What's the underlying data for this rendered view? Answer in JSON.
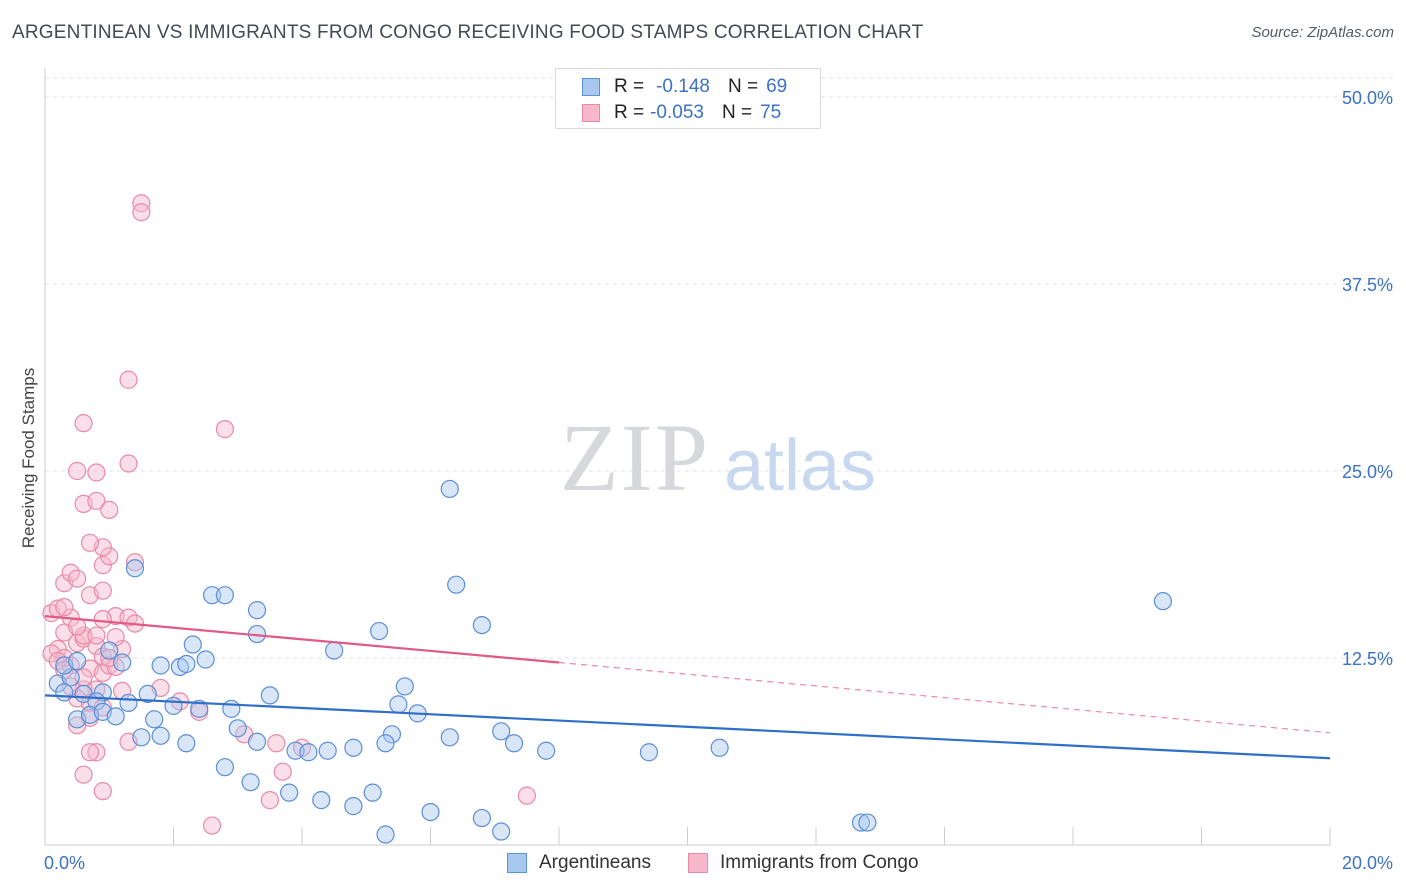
{
  "header": {
    "title": "ARGENTINEAN VS IMMIGRANTS FROM CONGO RECEIVING FOOD STAMPS CORRELATION CHART",
    "source": "Source: ZipAtlas.com"
  },
  "watermark": {
    "zip": "ZIP",
    "atlas": "atlas"
  },
  "legend": {
    "r_label": "R =",
    "n_label": "N =",
    "rows": [
      {
        "r": "-0.148",
        "n": "69"
      },
      {
        "r": "-0.053",
        "n": "75"
      }
    ]
  },
  "colors": {
    "blue_fill": "#a8c8f0",
    "blue_stroke": "#5b8fd6",
    "blue_line": "#2e6fc9",
    "pink_fill": "#f7b8cb",
    "pink_stroke": "#e88aa6",
    "pink_line": "#e05a86",
    "axis_label": "#3b72c4",
    "grid": "#dde0e5"
  },
  "chart_data": {
    "type": "scatter",
    "title": "ARGENTINEAN VS IMMIGRANTS FROM CONGO RECEIVING FOOD STAMPS CORRELATION CHART",
    "xlabel": "",
    "ylabel": "Receiving Food Stamps",
    "xlim": [
      0,
      20
    ],
    "ylim": [
      0,
      50
    ],
    "x_tick_labels": [
      "0.0%",
      "20.0%"
    ],
    "y_ticks": [
      12.5,
      25.0,
      37.5,
      50.0
    ],
    "y_tick_labels": [
      "12.5%",
      "25.0%",
      "37.5%",
      "50.0%"
    ],
    "legend_position": "top-center",
    "series": [
      {
        "name": "Argentineans",
        "r": -0.148,
        "n": 69,
        "trend": {
          "x": [
            0,
            20
          ],
          "y": [
            10.0,
            5.8
          ]
        },
        "points": [
          [
            0.2,
            10.8
          ],
          [
            0.4,
            11.2
          ],
          [
            0.3,
            12.0
          ],
          [
            0.5,
            12.3
          ],
          [
            0.3,
            10.2
          ],
          [
            0.6,
            10.1
          ],
          [
            0.9,
            10.2
          ],
          [
            0.8,
            9.6
          ],
          [
            0.5,
            8.4
          ],
          [
            0.7,
            8.7
          ],
          [
            0.9,
            8.9
          ],
          [
            1.0,
            13.0
          ],
          [
            1.2,
            12.2
          ],
          [
            1.1,
            8.6
          ],
          [
            1.3,
            9.5
          ],
          [
            1.4,
            18.5
          ],
          [
            1.6,
            10.1
          ],
          [
            1.7,
            8.4
          ],
          [
            1.5,
            7.2
          ],
          [
            1.8,
            7.3
          ],
          [
            1.8,
            12.0
          ],
          [
            2.0,
            9.3
          ],
          [
            2.1,
            11.9
          ],
          [
            2.2,
            12.1
          ],
          [
            2.3,
            13.4
          ],
          [
            2.4,
            9.1
          ],
          [
            2.2,
            6.8
          ],
          [
            2.5,
            12.4
          ],
          [
            2.6,
            16.7
          ],
          [
            2.8,
            16.7
          ],
          [
            3.3,
            15.7
          ],
          [
            3.3,
            14.1
          ],
          [
            2.9,
            9.1
          ],
          [
            3.5,
            10.0
          ],
          [
            3.0,
            7.8
          ],
          [
            2.8,
            5.2
          ],
          [
            3.3,
            6.9
          ],
          [
            3.2,
            4.2
          ],
          [
            3.9,
            6.3
          ],
          [
            4.1,
            6.2
          ],
          [
            4.4,
            6.3
          ],
          [
            4.8,
            6.5
          ],
          [
            4.5,
            13.0
          ],
          [
            5.2,
            14.3
          ],
          [
            5.6,
            10.6
          ],
          [
            5.5,
            9.4
          ],
          [
            5.8,
            8.8
          ],
          [
            5.4,
            7.4
          ],
          [
            5.3,
            6.8
          ],
          [
            6.3,
            23.8
          ],
          [
            6.4,
            17.4
          ],
          [
            6.8,
            14.7
          ],
          [
            7.1,
            7.6
          ],
          [
            6.3,
            7.2
          ],
          [
            7.3,
            6.8
          ],
          [
            7.8,
            6.3
          ],
          [
            9.4,
            6.2
          ],
          [
            10.5,
            6.5
          ],
          [
            3.8,
            3.5
          ],
          [
            4.3,
            3.0
          ],
          [
            4.8,
            2.6
          ],
          [
            5.1,
            3.5
          ],
          [
            6.0,
            2.2
          ],
          [
            6.8,
            1.8
          ],
          [
            5.3,
            0.7
          ],
          [
            7.1,
            0.9
          ],
          [
            12.7,
            1.5
          ],
          [
            12.8,
            1.5
          ],
          [
            17.4,
            16.3
          ]
        ]
      },
      {
        "name": "Immigrants from Congo",
        "r": -0.053,
        "n": 75,
        "trend": {
          "x": [
            0,
            8
          ],
          "y": [
            15.3,
            12.2
          ]
        },
        "trend_extension": {
          "x": [
            8,
            20
          ],
          "y": [
            12.2,
            7.5
          ]
        },
        "points": [
          [
            0.1,
            15.5
          ],
          [
            0.2,
            15.8
          ],
          [
            0.3,
            14.2
          ],
          [
            0.2,
            13.1
          ],
          [
            0.1,
            12.8
          ],
          [
            0.3,
            12.5
          ],
          [
            0.4,
            12.0
          ],
          [
            0.5,
            13.5
          ],
          [
            0.4,
            15.2
          ],
          [
            0.6,
            13.8
          ],
          [
            0.3,
            17.5
          ],
          [
            0.4,
            18.2
          ],
          [
            0.5,
            17.8
          ],
          [
            0.7,
            16.7
          ],
          [
            0.6,
            14.0
          ],
          [
            0.8,
            13.3
          ],
          [
            0.9,
            12.6
          ],
          [
            0.7,
            11.8
          ],
          [
            0.9,
            11.5
          ],
          [
            1.0,
            12.0
          ],
          [
            1.1,
            11.9
          ],
          [
            1.2,
            10.3
          ],
          [
            0.8,
            10.4
          ],
          [
            0.6,
            10.4
          ],
          [
            0.5,
            9.8
          ],
          [
            0.7,
            9.5
          ],
          [
            0.9,
            9.2
          ],
          [
            0.7,
            8.5
          ],
          [
            0.5,
            8.0
          ],
          [
            0.8,
            6.2
          ],
          [
            0.7,
            6.2
          ],
          [
            0.6,
            4.7
          ],
          [
            0.9,
            3.6
          ],
          [
            1.1,
            15.3
          ],
          [
            1.3,
            15.2
          ],
          [
            1.4,
            14.8
          ],
          [
            0.9,
            15.1
          ],
          [
            0.9,
            17.0
          ],
          [
            0.9,
            18.7
          ],
          [
            1.0,
            19.3
          ],
          [
            0.9,
            19.9
          ],
          [
            0.7,
            20.2
          ],
          [
            1.4,
            18.9
          ],
          [
            0.6,
            22.8
          ],
          [
            0.8,
            23.0
          ],
          [
            0.8,
            24.9
          ],
          [
            0.5,
            25.0
          ],
          [
            1.0,
            22.4
          ],
          [
            1.3,
            25.5
          ],
          [
            0.6,
            28.2
          ],
          [
            1.3,
            31.1
          ],
          [
            1.5,
            42.9
          ],
          [
            1.5,
            42.3
          ],
          [
            2.8,
            27.8
          ],
          [
            1.3,
            6.9
          ],
          [
            1.8,
            10.5
          ],
          [
            2.1,
            9.6
          ],
          [
            2.4,
            8.9
          ],
          [
            3.1,
            7.4
          ],
          [
            3.6,
            6.8
          ],
          [
            4.0,
            6.5
          ],
          [
            3.7,
            4.9
          ],
          [
            3.5,
            3.0
          ],
          [
            2.6,
            1.3
          ],
          [
            7.5,
            3.3
          ],
          [
            1.2,
            13.1
          ],
          [
            0.2,
            12.3
          ],
          [
            0.3,
            11.7
          ],
          [
            0.4,
            10.6
          ],
          [
            0.6,
            11.2
          ],
          [
            1.1,
            13.9
          ],
          [
            0.3,
            15.9
          ],
          [
            0.5,
            14.6
          ],
          [
            0.8,
            14.0
          ],
          [
            1.0,
            12.5
          ]
        ]
      }
    ]
  },
  "bottom_legend": {
    "items": [
      {
        "label": "Argentineans"
      },
      {
        "label": "Immigrants from Congo"
      }
    ]
  }
}
